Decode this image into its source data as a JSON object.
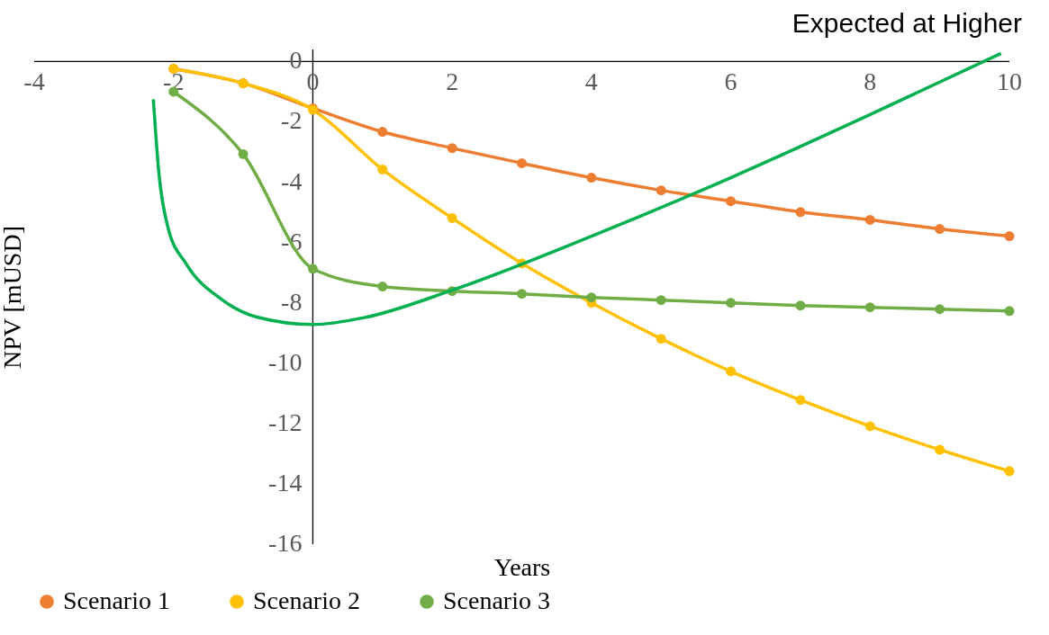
{
  "chart_data": {
    "type": "line",
    "title": "Expected at Higher",
    "xlabel": "Years",
    "ylabel": "NPV [mUSD]",
    "xlim": [
      -4,
      10
    ],
    "ylim": [
      -16,
      0.4
    ],
    "xticks": [
      -4,
      -2,
      0,
      2,
      4,
      6,
      8,
      10
    ],
    "yticks": [
      0,
      -2,
      -4,
      -6,
      -8,
      -10,
      -12,
      -14,
      -16
    ],
    "marker": "circle",
    "legend": "bottom",
    "series": [
      {
        "name": "Scenario 1",
        "color": "#ed7d31",
        "x": [
          -2,
          -1,
          0,
          1,
          2,
          3,
          4,
          5,
          6,
          7,
          8,
          9,
          10
        ],
        "values": [
          -0.24,
          -0.72,
          -1.55,
          -2.33,
          -2.87,
          -3.37,
          -3.85,
          -4.27,
          -4.63,
          -4.99,
          -5.25,
          -5.55,
          -5.79
        ]
      },
      {
        "name": "Scenario 2",
        "color": "#ffc000",
        "x": [
          -2,
          -1,
          0,
          1,
          2,
          3,
          4,
          5,
          6,
          7,
          8,
          9,
          10
        ],
        "values": [
          -0.24,
          -0.72,
          -1.6,
          -3.58,
          -5.19,
          -6.69,
          -8.0,
          -9.19,
          -10.27,
          -11.22,
          -12.09,
          -12.87,
          -13.58
        ]
      },
      {
        "name": "Scenario 3",
        "color": "#70ad47",
        "x": [
          -2,
          -1,
          0,
          1,
          2,
          3,
          4,
          5,
          6,
          7,
          8,
          9,
          10
        ],
        "values": [
          -1.0,
          -3.07,
          -6.87,
          -7.46,
          -7.61,
          -7.7,
          -7.82,
          -7.91,
          -8.0,
          -8.09,
          -8.15,
          -8.21,
          -8.27
        ]
      },
      {
        "color": "#00b050",
        "marker": "none",
        "x": [
          -2.29,
          -2.21,
          -2.08,
          -1.82,
          -1.3,
          -0.79,
          0,
          0.76,
          2,
          4,
          6,
          8,
          9.88
        ],
        "values": [
          -1.25,
          -3.7,
          -5.5,
          -6.7,
          -7.9,
          -8.48,
          -8.72,
          -8.48,
          -7.58,
          -5.79,
          -3.85,
          -1.76,
          0.27
        ]
      }
    ]
  }
}
